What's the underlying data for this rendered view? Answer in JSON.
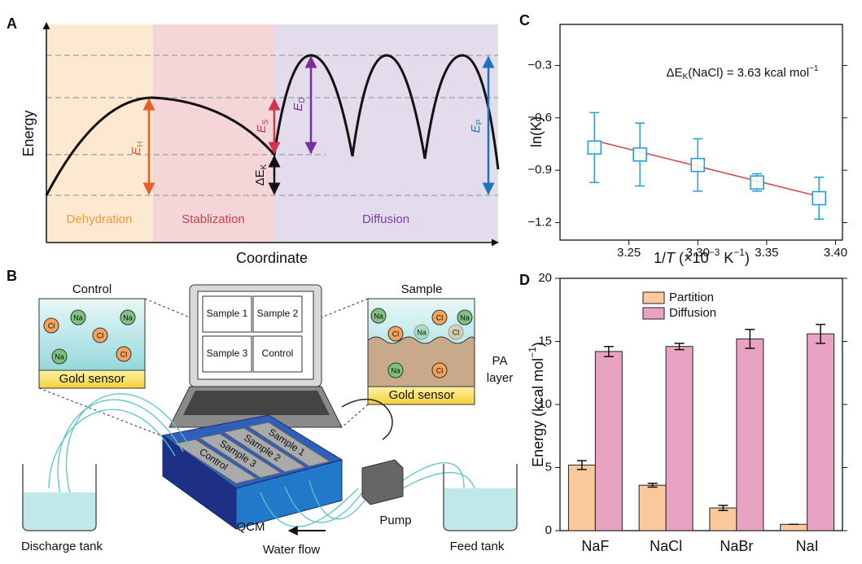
{
  "panel_labels": [
    "A",
    "B",
    "C",
    "D"
  ],
  "diagram_a": {
    "y_label": "Energy",
    "x_label": "Coordinate",
    "regions": [
      "Dehydration",
      "Stablization",
      "Diffusion"
    ],
    "energies": [
      {
        "symbol": "E",
        "sub": "H"
      },
      {
        "symbol": "E",
        "sub": "S"
      },
      {
        "symbol": "E",
        "sub": "D"
      },
      {
        "symbol": "E",
        "sub": "P"
      },
      {
        "symbol": "ΔE",
        "sub": "K"
      }
    ]
  },
  "diagram_b": {
    "control_panel": {
      "title": "Control",
      "substrate": "Gold sensor"
    },
    "sample_panel": {
      "title": "Sample",
      "substrate": "Gold sensor",
      "layer_label": [
        "PA",
        "layer"
      ]
    },
    "laptop_screen": [
      "Sample 1",
      "Sample 2",
      "Sample 3",
      "Control"
    ],
    "device_channels": [
      "Sample 1",
      "Sample 2",
      "Sample 3",
      "Control"
    ],
    "ions": [
      "Na",
      "Cl"
    ],
    "labels": {
      "device": "QCM",
      "pump": "Pump",
      "discharge": "Discharge tank",
      "feed": "Feed tank",
      "flow": "Water flow"
    }
  },
  "chart_data": [
    {
      "type": "scatter",
      "y_label": "ln(K)",
      "x_label": [
        "1/",
        "T",
        " (×10",
        "−3",
        " K",
        "−1",
        ")"
      ],
      "annotation": [
        "ΔE",
        "K",
        "(NaCl) = 3.63 kcal mol",
        "−1"
      ],
      "x": [
        3.225,
        3.258,
        3.3,
        3.343,
        3.388
      ],
      "values": [
        -0.77,
        -0.81,
        -0.87,
        -0.97,
        -1.06
      ],
      "errors": [
        0.2,
        0.18,
        0.15,
        0.05,
        0.12
      ],
      "color": "#2a9fd6",
      "fit": {
        "x": [
          3.225,
          3.388
        ],
        "values": [
          -0.73,
          -1.05
        ],
        "color": "#d9464f"
      },
      "xlim": [
        3.2,
        3.405
      ],
      "xticks": [
        3.25,
        {
          "value": 3.3,
          "label": "3.30"
        },
        3.35,
        {
          "value": 3.4,
          "label": "3.40"
        }
      ],
      "ylim": [
        -1.3,
        -0.065
      ],
      "yticks": [
        {
          "value": -0.3,
          "label": "−0.3"
        },
        {
          "value": -0.6,
          "label": "−0.6"
        },
        {
          "value": -0.9,
          "label": "−0.9"
        },
        {
          "value": -1.2,
          "label": "−1.2"
        }
      ]
    },
    {
      "type": "bar",
      "y_label": [
        "Energy (kcal mol",
        "−1",
        ")"
      ],
      "categories": [
        "NaF",
        "NaCl",
        "NaBr",
        "NaI"
      ],
      "series": [
        {
          "name": "Partition",
          "color": "#f9c89b",
          "values": [
            5.2,
            3.6,
            1.8,
            0.5
          ],
          "errors": [
            0.35,
            0.15,
            0.2,
            0
          ]
        },
        {
          "name": "Diffusion",
          "color": "#e8a3c3",
          "values": [
            14.2,
            14.6,
            15.2,
            15.6
          ],
          "errors": [
            0.4,
            0.25,
            0.75,
            0.75
          ]
        }
      ],
      "ylim": [
        0,
        20
      ],
      "yticks": [
        0,
        5,
        10,
        15,
        20
      ]
    }
  ]
}
